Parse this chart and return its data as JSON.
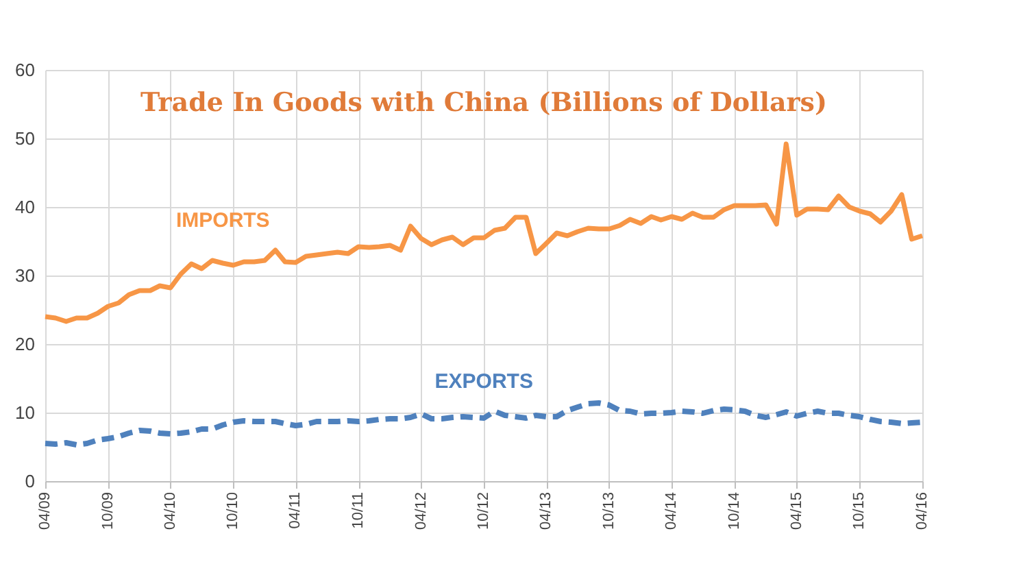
{
  "chart_data": {
    "type": "line",
    "title": "Trade In Goods with China (Billions of Dollars)",
    "x": [
      "2009-04",
      "2009-05",
      "2009-06",
      "2009-07",
      "2009-08",
      "2009-09",
      "2009-10",
      "2009-11",
      "2009-12",
      "2010-01",
      "2010-02",
      "2010-03",
      "2010-04",
      "2010-05",
      "2010-06",
      "2010-07",
      "2010-08",
      "2010-09",
      "2010-10",
      "2010-11",
      "2010-12",
      "2011-01",
      "2011-02",
      "2011-03",
      "2011-04",
      "2011-05",
      "2011-06",
      "2011-07",
      "2011-08",
      "2011-09",
      "2011-10",
      "2011-11",
      "2011-12",
      "2012-01",
      "2012-02",
      "2012-03",
      "2012-04",
      "2012-05",
      "2012-06",
      "2012-07",
      "2012-08",
      "2012-09",
      "2012-10",
      "2012-11",
      "2012-12",
      "2013-01",
      "2013-02",
      "2013-03",
      "2013-04",
      "2013-05",
      "2013-06",
      "2013-07",
      "2013-08",
      "2013-09",
      "2013-10",
      "2013-11",
      "2013-12",
      "2014-01",
      "2014-02",
      "2014-03",
      "2014-04",
      "2014-05",
      "2014-06",
      "2014-07",
      "2014-08",
      "2014-09",
      "2014-10",
      "2014-11",
      "2014-12",
      "2015-01",
      "2015-02",
      "2015-03",
      "2015-04",
      "2015-05",
      "2015-06",
      "2015-07",
      "2015-08",
      "2015-09",
      "2015-10",
      "2015-11",
      "2015-12",
      "2016-01",
      "2016-02",
      "2016-03",
      "2016-04"
    ],
    "series": [
      {
        "name": "IMPORTS",
        "color": "#f79646",
        "line_style": "solid",
        "values": [
          24,
          23.8,
          23.3,
          23.8,
          23.8,
          24.5,
          25.5,
          26,
          27.2,
          27.8,
          27.8,
          28.5,
          28.2,
          30.2,
          31.7,
          31,
          32.2,
          31.8,
          31.5,
          32,
          32,
          32.2,
          33.7,
          32,
          31.9,
          32.8,
          33,
          33.2,
          33.4,
          33.2,
          34.2,
          34.1,
          34.2,
          34.4,
          33.7,
          37.2,
          35.4,
          34.5,
          35.2,
          35.6,
          34.5,
          35.5,
          35.5,
          36.6,
          36.9,
          38.5,
          38.5,
          33.2,
          34.7,
          36.2,
          35.8,
          36.4,
          36.9,
          36.8,
          36.8,
          37.3,
          38.2,
          37.6,
          38.6,
          38.1,
          38.6,
          38.2,
          39.1,
          38.5,
          38.5,
          39.6,
          40.2,
          40.2,
          40.2,
          40.3,
          37.5,
          49.2,
          38.8,
          39.7,
          39.7,
          39.6,
          41.6,
          40,
          39.4,
          39,
          37.8,
          39.4,
          41.8,
          35.3,
          35.8
        ]
      },
      {
        "name": "EXPORTS",
        "color": "#4f81bd",
        "line_style": "dashed",
        "values": [
          5.5,
          5.4,
          5.6,
          5.3,
          5.5,
          6.0,
          6.2,
          6.5,
          7.0,
          7.4,
          7.3,
          7.0,
          6.9,
          7.0,
          7.2,
          7.6,
          7.6,
          8.2,
          8.6,
          8.8,
          8.7,
          8.7,
          8.7,
          8.4,
          8.1,
          8.3,
          8.7,
          8.7,
          8.7,
          8.8,
          8.7,
          8.8,
          9.0,
          9.1,
          9.1,
          9.3,
          9.8,
          9.1,
          9.1,
          9.3,
          9.4,
          9.3,
          9.2,
          10.2,
          9.6,
          9.4,
          9.2,
          9.6,
          9.4,
          9.4,
          10.3,
          10.8,
          11.3,
          11.4,
          11.1,
          10.3,
          10.2,
          9.8,
          9.9,
          9.9,
          10.0,
          10.2,
          10.1,
          9.9,
          10.3,
          10.5,
          10.4,
          10.2,
          9.6,
          9.3,
          9.7,
          10.1,
          9.5,
          9.9,
          10.2,
          9.9,
          9.9,
          9.6,
          9.4,
          9.0,
          8.7,
          8.6,
          8.4,
          8.5,
          8.6
        ]
      }
    ],
    "xlim": [
      "2009-04",
      "2016-04"
    ],
    "xticks": [
      {
        "value": "2009-04",
        "label": "04/09"
      },
      {
        "value": "2009-10",
        "label": "10/09"
      },
      {
        "value": "2010-04",
        "label": "04/10"
      },
      {
        "value": "2010-10",
        "label": "10/10"
      },
      {
        "value": "2011-04",
        "label": "04/11"
      },
      {
        "value": "2011-10",
        "label": "10/11"
      },
      {
        "value": "2012-04",
        "label": "04/12"
      },
      {
        "value": "2012-10",
        "label": "10/12"
      },
      {
        "value": "2013-04",
        "label": "04/13"
      },
      {
        "value": "2013-10",
        "label": "10/13"
      },
      {
        "value": "2014-04",
        "label": "04/14"
      },
      {
        "value": "2014-10",
        "label": "10/14"
      },
      {
        "value": "2015-04",
        "label": "04/15"
      },
      {
        "value": "2015-10",
        "label": "10/15"
      },
      {
        "value": "2016-04",
        "label": "04/16"
      }
    ],
    "ylim": [
      0,
      60
    ],
    "yticks": [
      0,
      10,
      20,
      30,
      40,
      50,
      60
    ],
    "grid": true,
    "legend": false,
    "marker": "none"
  }
}
